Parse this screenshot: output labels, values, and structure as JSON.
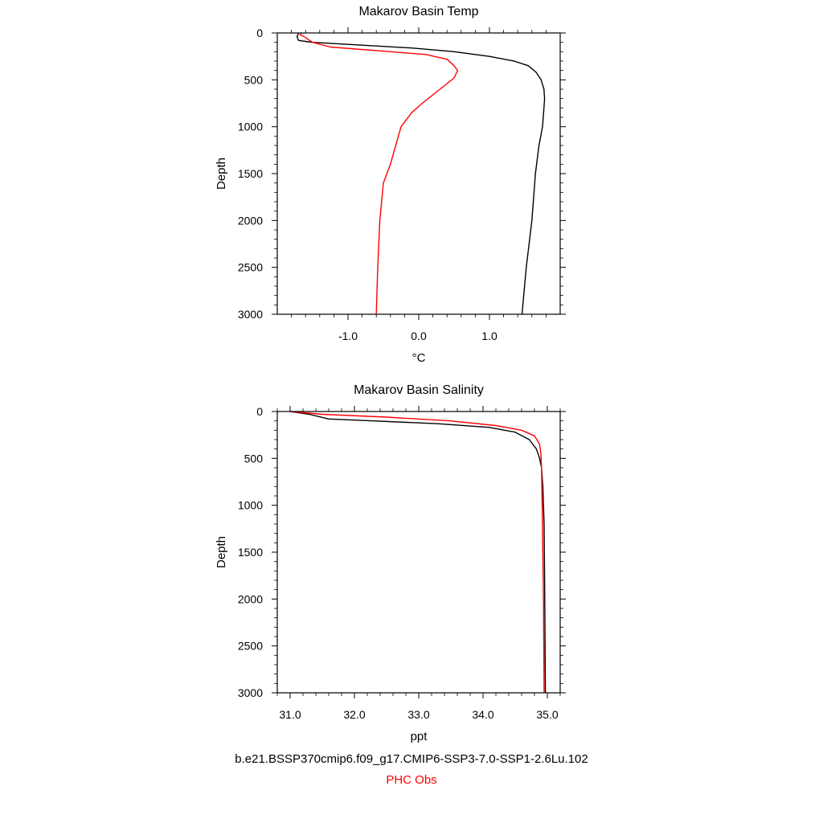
{
  "legend": [
    {
      "label": "b.e21.BSSP370cmip6.f09_g17.CMIP6-SSP3-7.0-SSP1-2.6Lu.102",
      "color": "#000000"
    },
    {
      "label": "PHC Obs",
      "color": "#ff0000"
    }
  ],
  "chart_data": [
    {
      "type": "line",
      "title": "Makarov Basin Temp",
      "xlabel": "°C",
      "ylabel": "Depth",
      "xlim": [
        -2.0,
        2.0
      ],
      "ylim": [
        3000,
        0
      ],
      "y_inverted": true,
      "xticks": [
        -1.0,
        0.0,
        1.0
      ],
      "xtick_labels": [
        "-1.0",
        "0.0",
        "1.0"
      ],
      "yticks": [
        0,
        500,
        1000,
        1500,
        2000,
        2500,
        3000
      ],
      "ytick_labels": [
        "0",
        "500",
        "1000",
        "1500",
        "2000",
        "2500",
        "3000"
      ],
      "series": [
        {
          "name": "b.e21.BSSP370cmip6.f09_g17.CMIP6-SSP3-7.0-SSP1-2.6Lu.102",
          "color": "#000000",
          "points": [
            [
              -1.7,
              0
            ],
            [
              -1.72,
              40
            ],
            [
              -1.7,
              80
            ],
            [
              -1.5,
              100
            ],
            [
              -0.8,
              130
            ],
            [
              -0.1,
              160
            ],
            [
              0.5,
              200
            ],
            [
              1.0,
              250
            ],
            [
              1.35,
              300
            ],
            [
              1.55,
              350
            ],
            [
              1.66,
              420
            ],
            [
              1.73,
              500
            ],
            [
              1.77,
              600
            ],
            [
              1.78,
              700
            ],
            [
              1.77,
              800
            ],
            [
              1.75,
              1000
            ],
            [
              1.7,
              1200
            ],
            [
              1.65,
              1500
            ],
            [
              1.6,
              2000
            ],
            [
              1.52,
              2500
            ],
            [
              1.46,
              3000
            ]
          ]
        },
        {
          "name": "PHC Obs",
          "color": "#ff0000",
          "points": [
            [
              -1.65,
              0
            ],
            [
              -1.68,
              20
            ],
            [
              -1.62,
              40
            ],
            [
              -1.5,
              100
            ],
            [
              -1.25,
              150
            ],
            [
              -0.4,
              200
            ],
            [
              0.1,
              230
            ],
            [
              0.4,
              280
            ],
            [
              0.5,
              350
            ],
            [
              0.55,
              400
            ],
            [
              0.5,
              480
            ],
            [
              0.3,
              600
            ],
            [
              0.05,
              750
            ],
            [
              -0.1,
              850
            ],
            [
              -0.2,
              950
            ],
            [
              -0.25,
              1000
            ],
            [
              -0.4,
              1400
            ],
            [
              -0.5,
              1600
            ],
            [
              -0.55,
              2000
            ],
            [
              -0.58,
              2500
            ],
            [
              -0.6,
              3000
            ]
          ]
        }
      ]
    },
    {
      "type": "line",
      "title": "Makarov Basin Salinity",
      "xlabel": "ppt",
      "ylabel": "Depth",
      "xlim": [
        30.8,
        35.2
      ],
      "ylim": [
        3000,
        0
      ],
      "y_inverted": true,
      "xticks": [
        31.0,
        32.0,
        33.0,
        34.0,
        35.0
      ],
      "xtick_labels": [
        "31.0",
        "32.0",
        "33.0",
        "34.0",
        "35.0"
      ],
      "yticks": [
        0,
        500,
        1000,
        1500,
        2000,
        2500,
        3000
      ],
      "ytick_labels": [
        "0",
        "500",
        "1000",
        "1500",
        "2000",
        "2500",
        "3000"
      ],
      "series": [
        {
          "name": "b.e21.BSSP370cmip6.f09_g17.CMIP6-SSP3-7.0-SSP1-2.6Lu.102",
          "color": "#000000",
          "points": [
            [
              31.0,
              0
            ],
            [
              31.3,
              30
            ],
            [
              31.6,
              80
            ],
            [
              32.3,
              100
            ],
            [
              33.3,
              130
            ],
            [
              34.1,
              170
            ],
            [
              34.5,
              220
            ],
            [
              34.72,
              300
            ],
            [
              34.83,
              400
            ],
            [
              34.88,
              500
            ],
            [
              34.91,
              600
            ],
            [
              34.93,
              800
            ],
            [
              34.95,
              1200
            ],
            [
              34.96,
              2000
            ],
            [
              34.97,
              3000
            ]
          ]
        },
        {
          "name": "PHC Obs",
          "color": "#ff0000",
          "points": [
            [
              31.0,
              0
            ],
            [
              31.5,
              30
            ],
            [
              32.5,
              60
            ],
            [
              33.5,
              100
            ],
            [
              34.2,
              150
            ],
            [
              34.6,
              200
            ],
            [
              34.8,
              260
            ],
            [
              34.88,
              350
            ],
            [
              34.9,
              450
            ],
            [
              34.91,
              600
            ],
            [
              34.92,
              1000
            ],
            [
              34.93,
              1500
            ],
            [
              34.94,
              2000
            ],
            [
              34.95,
              3000
            ]
          ]
        }
      ]
    }
  ]
}
